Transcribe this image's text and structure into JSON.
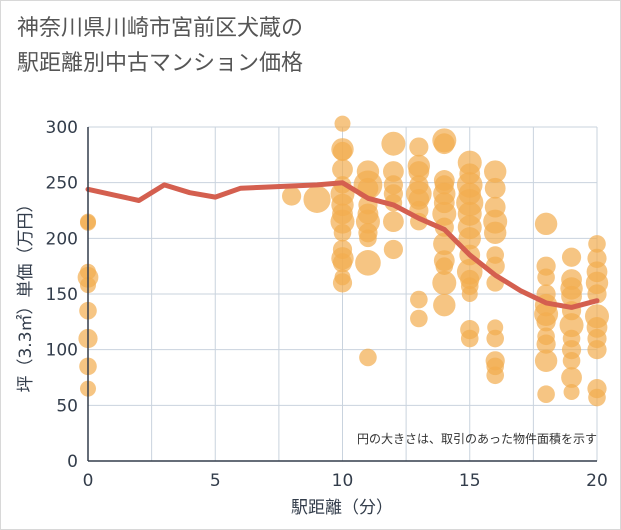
{
  "title": "神奈川県川崎市宮前区犬蔵の\n駅距離別中古マンション価格",
  "chart_data": {
    "type": "scatter",
    "title": "神奈川県川崎市宮前区犬蔵の駅距離別中古マンション価格",
    "xlabel": "駅距離（分）",
    "ylabel": "坪（3.3㎡）単価（万円）",
    "xlim": [
      0,
      20
    ],
    "ylim": [
      0,
      300
    ],
    "xticks": [
      "0",
      "5",
      "10",
      "15",
      "20"
    ],
    "yticks": [
      "0",
      "50",
      "100",
      "150",
      "200",
      "250",
      "300"
    ],
    "grid": true,
    "note": "円の大きさは、取引のあった物件面積を示す",
    "colors": {
      "points": "#f2ad4e",
      "line": "#d45f4f",
      "grid": "#c9d3de",
      "axis": "#333d4b"
    },
    "scatter": [
      {
        "x": 0,
        "y": 215,
        "s": 1.0
      },
      {
        "x": 0,
        "y": 214,
        "s": 1.0
      },
      {
        "x": 0,
        "y": 170,
        "s": 1.0
      },
      {
        "x": 0,
        "y": 165,
        "s": 1.3
      },
      {
        "x": 0,
        "y": 158,
        "s": 1.0
      },
      {
        "x": 0,
        "y": 135,
        "s": 1.1
      },
      {
        "x": 0,
        "y": 110,
        "s": 1.2
      },
      {
        "x": 0,
        "y": 85,
        "s": 1.1
      },
      {
        "x": 0,
        "y": 65,
        "s": 1.0
      },
      {
        "x": 8,
        "y": 238,
        "s": 1.2
      },
      {
        "x": 9,
        "y": 235,
        "s": 1.7
      },
      {
        "x": 10,
        "y": 303,
        "s": 1.0
      },
      {
        "x": 10,
        "y": 280,
        "s": 1.4
      },
      {
        "x": 10,
        "y": 278,
        "s": 1.2
      },
      {
        "x": 10,
        "y": 262,
        "s": 1.3
      },
      {
        "x": 10,
        "y": 248,
        "s": 1.1
      },
      {
        "x": 10,
        "y": 240,
        "s": 1.5
      },
      {
        "x": 10,
        "y": 230,
        "s": 1.4
      },
      {
        "x": 10,
        "y": 222,
        "s": 1.3
      },
      {
        "x": 10,
        "y": 215,
        "s": 1.5
      },
      {
        "x": 10,
        "y": 205,
        "s": 1.1
      },
      {
        "x": 10,
        "y": 190,
        "s": 1.2
      },
      {
        "x": 10,
        "y": 182,
        "s": 1.4
      },
      {
        "x": 10,
        "y": 178,
        "s": 1.2
      },
      {
        "x": 10,
        "y": 165,
        "s": 1.0
      },
      {
        "x": 10,
        "y": 160,
        "s": 1.2
      },
      {
        "x": 11,
        "y": 260,
        "s": 1.4
      },
      {
        "x": 11,
        "y": 248,
        "s": 1.8
      },
      {
        "x": 11,
        "y": 245,
        "s": 1.3
      },
      {
        "x": 11,
        "y": 230,
        "s": 1.2
      },
      {
        "x": 11,
        "y": 222,
        "s": 1.3
      },
      {
        "x": 11,
        "y": 215,
        "s": 1.5
      },
      {
        "x": 11,
        "y": 205,
        "s": 1.2
      },
      {
        "x": 11,
        "y": 200,
        "s": 1.1
      },
      {
        "x": 11,
        "y": 178,
        "s": 1.6
      },
      {
        "x": 11,
        "y": 93,
        "s": 1.1
      },
      {
        "x": 12,
        "y": 285,
        "s": 1.5
      },
      {
        "x": 12,
        "y": 260,
        "s": 1.3
      },
      {
        "x": 12,
        "y": 248,
        "s": 1.2
      },
      {
        "x": 12,
        "y": 240,
        "s": 1.2
      },
      {
        "x": 12,
        "y": 232,
        "s": 1.1
      },
      {
        "x": 12,
        "y": 215,
        "s": 1.3
      },
      {
        "x": 12,
        "y": 190,
        "s": 1.2
      },
      {
        "x": 13,
        "y": 282,
        "s": 1.2
      },
      {
        "x": 13,
        "y": 265,
        "s": 1.4
      },
      {
        "x": 13,
        "y": 260,
        "s": 1.3
      },
      {
        "x": 13,
        "y": 248,
        "s": 1.2
      },
      {
        "x": 13,
        "y": 240,
        "s": 1.6
      },
      {
        "x": 13,
        "y": 235,
        "s": 1.3
      },
      {
        "x": 13,
        "y": 225,
        "s": 1.2
      },
      {
        "x": 13,
        "y": 215,
        "s": 1.1
      },
      {
        "x": 13,
        "y": 145,
        "s": 1.1
      },
      {
        "x": 13,
        "y": 128,
        "s": 1.1
      },
      {
        "x": 14,
        "y": 288,
        "s": 1.5
      },
      {
        "x": 14,
        "y": 285,
        "s": 1.3
      },
      {
        "x": 14,
        "y": 252,
        "s": 1.3
      },
      {
        "x": 14,
        "y": 248,
        "s": 1.2
      },
      {
        "x": 14,
        "y": 240,
        "s": 1.4
      },
      {
        "x": 14,
        "y": 232,
        "s": 1.3
      },
      {
        "x": 14,
        "y": 222,
        "s": 1.5
      },
      {
        "x": 14,
        "y": 210,
        "s": 1.2
      },
      {
        "x": 14,
        "y": 195,
        "s": 1.4
      },
      {
        "x": 14,
        "y": 180,
        "s": 1.3
      },
      {
        "x": 14,
        "y": 175,
        "s": 1.1
      },
      {
        "x": 14,
        "y": 160,
        "s": 1.5
      },
      {
        "x": 14,
        "y": 140,
        "s": 1.4
      },
      {
        "x": 15,
        "y": 268,
        "s": 1.5
      },
      {
        "x": 15,
        "y": 258,
        "s": 1.3
      },
      {
        "x": 15,
        "y": 248,
        "s": 1.6
      },
      {
        "x": 15,
        "y": 240,
        "s": 1.4
      },
      {
        "x": 15,
        "y": 232,
        "s": 1.7
      },
      {
        "x": 15,
        "y": 222,
        "s": 1.5
      },
      {
        "x": 15,
        "y": 210,
        "s": 1.5
      },
      {
        "x": 15,
        "y": 200,
        "s": 1.4
      },
      {
        "x": 15,
        "y": 185,
        "s": 1.3
      },
      {
        "x": 15,
        "y": 170,
        "s": 1.6
      },
      {
        "x": 15,
        "y": 163,
        "s": 1.2
      },
      {
        "x": 15,
        "y": 157,
        "s": 1.1
      },
      {
        "x": 15,
        "y": 150,
        "s": 1.0
      },
      {
        "x": 15,
        "y": 118,
        "s": 1.2
      },
      {
        "x": 15,
        "y": 110,
        "s": 1.1
      },
      {
        "x": 16,
        "y": 260,
        "s": 1.4
      },
      {
        "x": 16,
        "y": 245,
        "s": 1.3
      },
      {
        "x": 16,
        "y": 228,
        "s": 1.3
      },
      {
        "x": 16,
        "y": 215,
        "s": 1.5
      },
      {
        "x": 16,
        "y": 205,
        "s": 1.4
      },
      {
        "x": 16,
        "y": 185,
        "s": 1.1
      },
      {
        "x": 16,
        "y": 175,
        "s": 1.2
      },
      {
        "x": 16,
        "y": 160,
        "s": 1.1
      },
      {
        "x": 16,
        "y": 120,
        "s": 1.0
      },
      {
        "x": 16,
        "y": 110,
        "s": 1.1
      },
      {
        "x": 16,
        "y": 90,
        "s": 1.2
      },
      {
        "x": 16,
        "y": 85,
        "s": 1.1
      },
      {
        "x": 16,
        "y": 77,
        "s": 1.1
      },
      {
        "x": 18,
        "y": 213,
        "s": 1.4
      },
      {
        "x": 18,
        "y": 175,
        "s": 1.2
      },
      {
        "x": 18,
        "y": 165,
        "s": 1.1
      },
      {
        "x": 18,
        "y": 150,
        "s": 1.2
      },
      {
        "x": 18,
        "y": 140,
        "s": 1.4
      },
      {
        "x": 18,
        "y": 132,
        "s": 1.5
      },
      {
        "x": 18,
        "y": 125,
        "s": 1.2
      },
      {
        "x": 18,
        "y": 112,
        "s": 1.1
      },
      {
        "x": 18,
        "y": 105,
        "s": 1.2
      },
      {
        "x": 18,
        "y": 90,
        "s": 1.4
      },
      {
        "x": 18,
        "y": 60,
        "s": 1.1
      },
      {
        "x": 19,
        "y": 183,
        "s": 1.2
      },
      {
        "x": 19,
        "y": 163,
        "s": 1.3
      },
      {
        "x": 19,
        "y": 155,
        "s": 1.4
      },
      {
        "x": 19,
        "y": 148,
        "s": 1.3
      },
      {
        "x": 19,
        "y": 135,
        "s": 1.2
      },
      {
        "x": 19,
        "y": 122,
        "s": 1.5
      },
      {
        "x": 19,
        "y": 110,
        "s": 1.1
      },
      {
        "x": 19,
        "y": 100,
        "s": 1.2
      },
      {
        "x": 19,
        "y": 90,
        "s": 1.1
      },
      {
        "x": 19,
        "y": 75,
        "s": 1.3
      },
      {
        "x": 19,
        "y": 62,
        "s": 1.0
      },
      {
        "x": 20,
        "y": 195,
        "s": 1.1
      },
      {
        "x": 20,
        "y": 182,
        "s": 1.2
      },
      {
        "x": 20,
        "y": 170,
        "s": 1.3
      },
      {
        "x": 20,
        "y": 160,
        "s": 1.4
      },
      {
        "x": 20,
        "y": 150,
        "s": 1.2
      },
      {
        "x": 20,
        "y": 130,
        "s": 1.5
      },
      {
        "x": 20,
        "y": 120,
        "s": 1.3
      },
      {
        "x": 20,
        "y": 110,
        "s": 1.2
      },
      {
        "x": 20,
        "y": 100,
        "s": 1.2
      },
      {
        "x": 20,
        "y": 65,
        "s": 1.2
      },
      {
        "x": 20,
        "y": 57,
        "s": 1.1
      }
    ],
    "trend": {
      "x": [
        0,
        1,
        2,
        3,
        4,
        5,
        6,
        7,
        8,
        9,
        10,
        11,
        12,
        13,
        14,
        15,
        16,
        17,
        18,
        19,
        20
      ],
      "y": [
        244,
        239,
        234,
        248,
        241,
        237,
        245,
        246,
        247,
        248,
        250,
        236,
        230,
        218,
        208,
        185,
        167,
        153,
        142,
        138,
        144
      ]
    }
  }
}
